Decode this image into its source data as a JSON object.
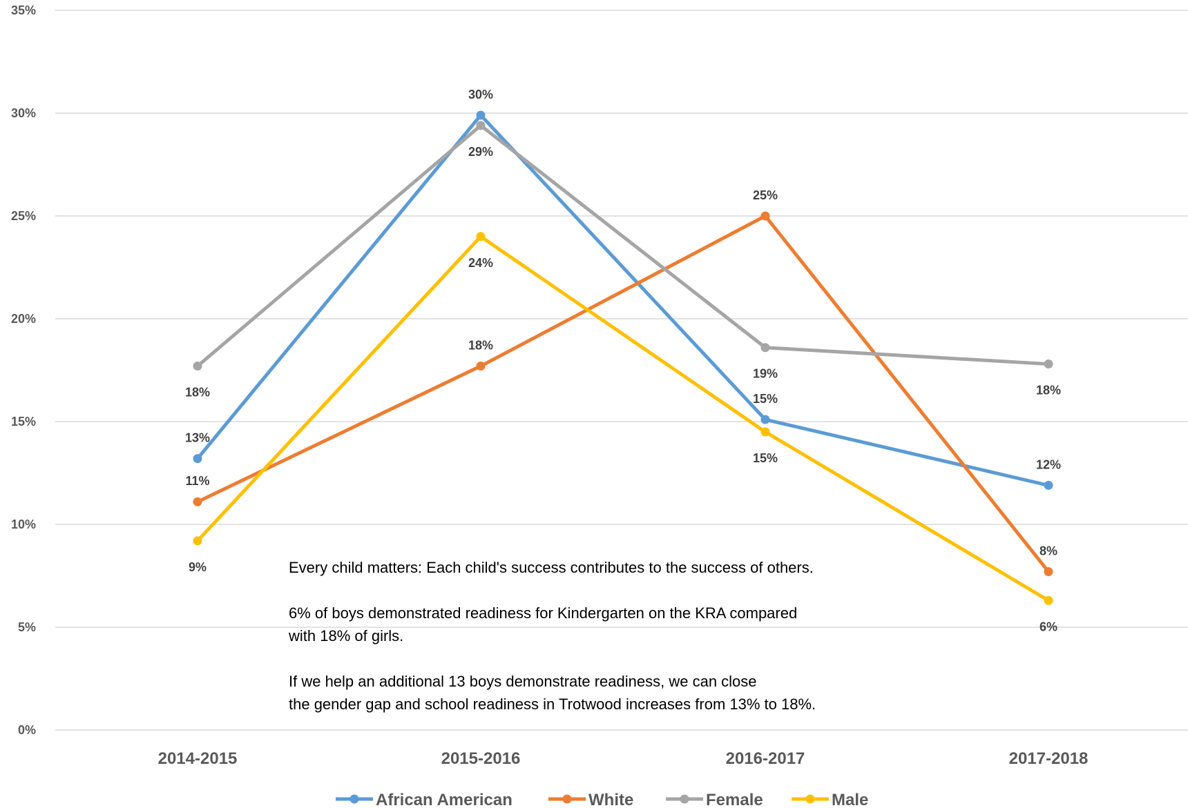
{
  "chart_data": {
    "type": "line",
    "categories": [
      "2014-2015",
      "2015-2016",
      "2016-2017",
      "2017-2018"
    ],
    "ylim": [
      0,
      35
    ],
    "y_ticks": [
      "0%",
      "5%",
      "10%",
      "15%",
      "20%",
      "25%",
      "30%",
      "35%"
    ],
    "grid": true,
    "legend_position": "bottom",
    "series": [
      {
        "name": "African American",
        "color": "#5B9BD5",
        "values": [
          13.2,
          29.9,
          15.1,
          11.9
        ],
        "labels": [
          "13%",
          "30%",
          "15%",
          "12%"
        ]
      },
      {
        "name": "White",
        "color": "#ED7D31",
        "values": [
          11.1,
          17.7,
          25.0,
          7.7
        ],
        "labels": [
          "11%",
          "18%",
          "25%",
          "8%"
        ]
      },
      {
        "name": "Female",
        "color": "#A5A5A5",
        "values": [
          17.7,
          29.4,
          18.6,
          17.8
        ],
        "labels": [
          "18%",
          "29%",
          "19%",
          "18%"
        ]
      },
      {
        "name": "Male",
        "color": "#FFC000",
        "values": [
          9.2,
          24.0,
          14.5,
          6.3
        ],
        "labels": [
          "9%",
          "24%",
          "15%",
          "6%"
        ]
      }
    ]
  },
  "annotation": {
    "line1": "Every child matters: Each child's success contributes to the success of others.",
    "line2a": "6% of boys demonstrated readiness for Kindergarten on the KRA compared",
    "line2b": "with 18% of girls.",
    "line3a": "If we help an additional 13 boys demonstrate readiness, we can close",
    "line3b": "the gender gap and school readiness in Trotwood increases from 13% to 18%."
  }
}
